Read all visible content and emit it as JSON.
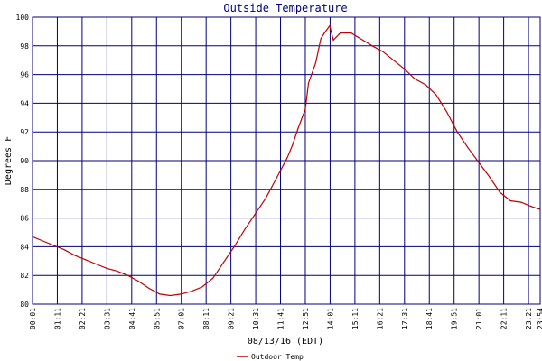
{
  "chart_data": {
    "type": "line",
    "title": "Outside Temperature",
    "xlabel": "08/13/16 (EDT)",
    "ylabel": "Degrees F",
    "ylim": [
      80,
      100
    ],
    "xlim": [
      "00:01",
      "23:54"
    ],
    "yticks": [
      80,
      82,
      84,
      86,
      88,
      90,
      92,
      94,
      96,
      98,
      100
    ],
    "xticks": [
      "00:01",
      "01:11",
      "02:21",
      "03:31",
      "04:41",
      "05:51",
      "07:01",
      "08:11",
      "09:21",
      "10:31",
      "11:41",
      "12:51",
      "14:01",
      "15:11",
      "16:21",
      "17:31",
      "18:41",
      "19:51",
      "21:01",
      "22:11",
      "23:21",
      "23:54"
    ],
    "grid": true,
    "legend": "bottom-left",
    "series": [
      {
        "name": "Outdoor Temp",
        "color": "#c00000",
        "x": [
          "00:01",
          "00:30",
          "01:00",
          "01:30",
          "02:00",
          "02:30",
          "03:00",
          "03:30",
          "04:00",
          "04:30",
          "05:00",
          "05:30",
          "06:00",
          "06:30",
          "07:00",
          "07:30",
          "08:00",
          "08:30",
          "09:00",
          "09:30",
          "10:00",
          "10:30",
          "11:00",
          "11:30",
          "12:00",
          "12:15",
          "12:30",
          "12:51",
          "13:00",
          "13:20",
          "13:35",
          "13:45",
          "14:00",
          "14:10",
          "14:30",
          "15:00",
          "15:20",
          "15:40",
          "16:00",
          "16:30",
          "17:00",
          "17:30",
          "18:00",
          "18:30",
          "19:00",
          "19:30",
          "20:00",
          "20:30",
          "21:00",
          "21:30",
          "22:00",
          "22:30",
          "23:00",
          "23:30",
          "23:54"
        ],
        "y": [
          84.7,
          84.4,
          84.1,
          83.8,
          83.4,
          83.1,
          82.8,
          82.5,
          82.3,
          82.0,
          81.6,
          81.1,
          80.7,
          80.6,
          80.7,
          80.9,
          81.2,
          81.8,
          82.9,
          84.0,
          85.2,
          86.3,
          87.4,
          88.8,
          90.2,
          91.1,
          92.2,
          93.6,
          95.4,
          96.8,
          98.5,
          98.9,
          99.4,
          98.4,
          98.9,
          98.9,
          98.6,
          98.3,
          98.0,
          97.6,
          97.0,
          96.4,
          95.7,
          95.3,
          94.6,
          93.4,
          92.0,
          90.9,
          89.9,
          88.9,
          87.8,
          87.2,
          87.1,
          86.8,
          86.6
        ]
      }
    ]
  }
}
